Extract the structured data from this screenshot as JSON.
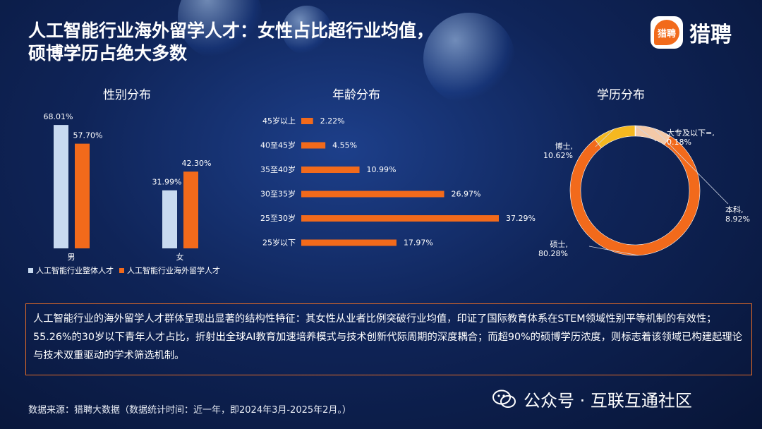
{
  "title_line1": "人工智能行业海外留学人才：女性占比超行业均值，",
  "title_line2": "硕博学历占绝大多数",
  "brand": {
    "icon_text": "猎聘",
    "name": "猎聘"
  },
  "colors": {
    "overall": "#c8daf0",
    "overseas": "#f26a1b",
    "yellow": "#f5b820",
    "peach": "#f3c9a8"
  },
  "gender_chart": {
    "title": "性别分布"
  },
  "age_chart": {
    "title": "年龄分布"
  },
  "edu_chart": {
    "title": "学历分布"
  },
  "legend": {
    "overall": "人工智能行业整体人才",
    "overseas": "人工智能行业海外留学人才"
  },
  "chart_data": [
    {
      "type": "bar",
      "title": "性别分布",
      "categories": [
        "男",
        "女"
      ],
      "series": [
        {
          "name": "人工智能行业整体人才",
          "values": [
            68.01,
            31.99
          ],
          "labels": [
            "68.01%",
            "31.99%"
          ]
        },
        {
          "name": "人工智能行业海外留学人才",
          "values": [
            57.7,
            42.3
          ],
          "labels": [
            "57.70%",
            "42.30%"
          ]
        }
      ],
      "ylim": [
        0,
        70
      ]
    },
    {
      "type": "bar",
      "orientation": "horizontal",
      "title": "年龄分布",
      "categories": [
        "45岁以上",
        "40至45岁",
        "35至40岁",
        "30至35岁",
        "25至30岁",
        "25岁以下"
      ],
      "values": [
        2.22,
        4.55,
        10.99,
        26.97,
        37.29,
        17.97
      ],
      "labels": [
        "2.22%",
        "4.55%",
        "10.99%",
        "26.97%",
        "37.29%",
        "17.97%"
      ],
      "xlim": [
        0,
        40
      ]
    },
    {
      "type": "pie",
      "donut": true,
      "title": "学历分布",
      "slices": [
        {
          "name": "大专及以下=,",
          "value": 0.18,
          "label": "0.18%",
          "color": "#f3c9a8"
        },
        {
          "name": "本科,",
          "value": 8.92,
          "label": "8.92%",
          "color": "#f3c9a8"
        },
        {
          "name": "硕士,",
          "value": 80.28,
          "label": "80.28%",
          "color": "#f26a1b"
        },
        {
          "name": "博士,",
          "value": 10.62,
          "label": "10.62%",
          "color": "#f5b820"
        }
      ]
    }
  ],
  "summary": "人工智能行业的海外留学人才群体呈现出显著的结构性特征：其女性从业者比例突破行业均值，印证了国际教育体系在STEM领域性别平等机制的有效性；55.26%的30岁以下青年人才占比，折射出全球AI教育加速培养模式与技术创新代际周期的深度耦合；而超90%的硕博学历浓度，则标志着该领域已构建起理论与技术双重驱动的学术筛选机制。",
  "footer": "数据来源：猎聘大数据（数据统计时间：近一年，即2024年3月-2025年2月。）",
  "watermark": "公众号 · 互联互通社区"
}
